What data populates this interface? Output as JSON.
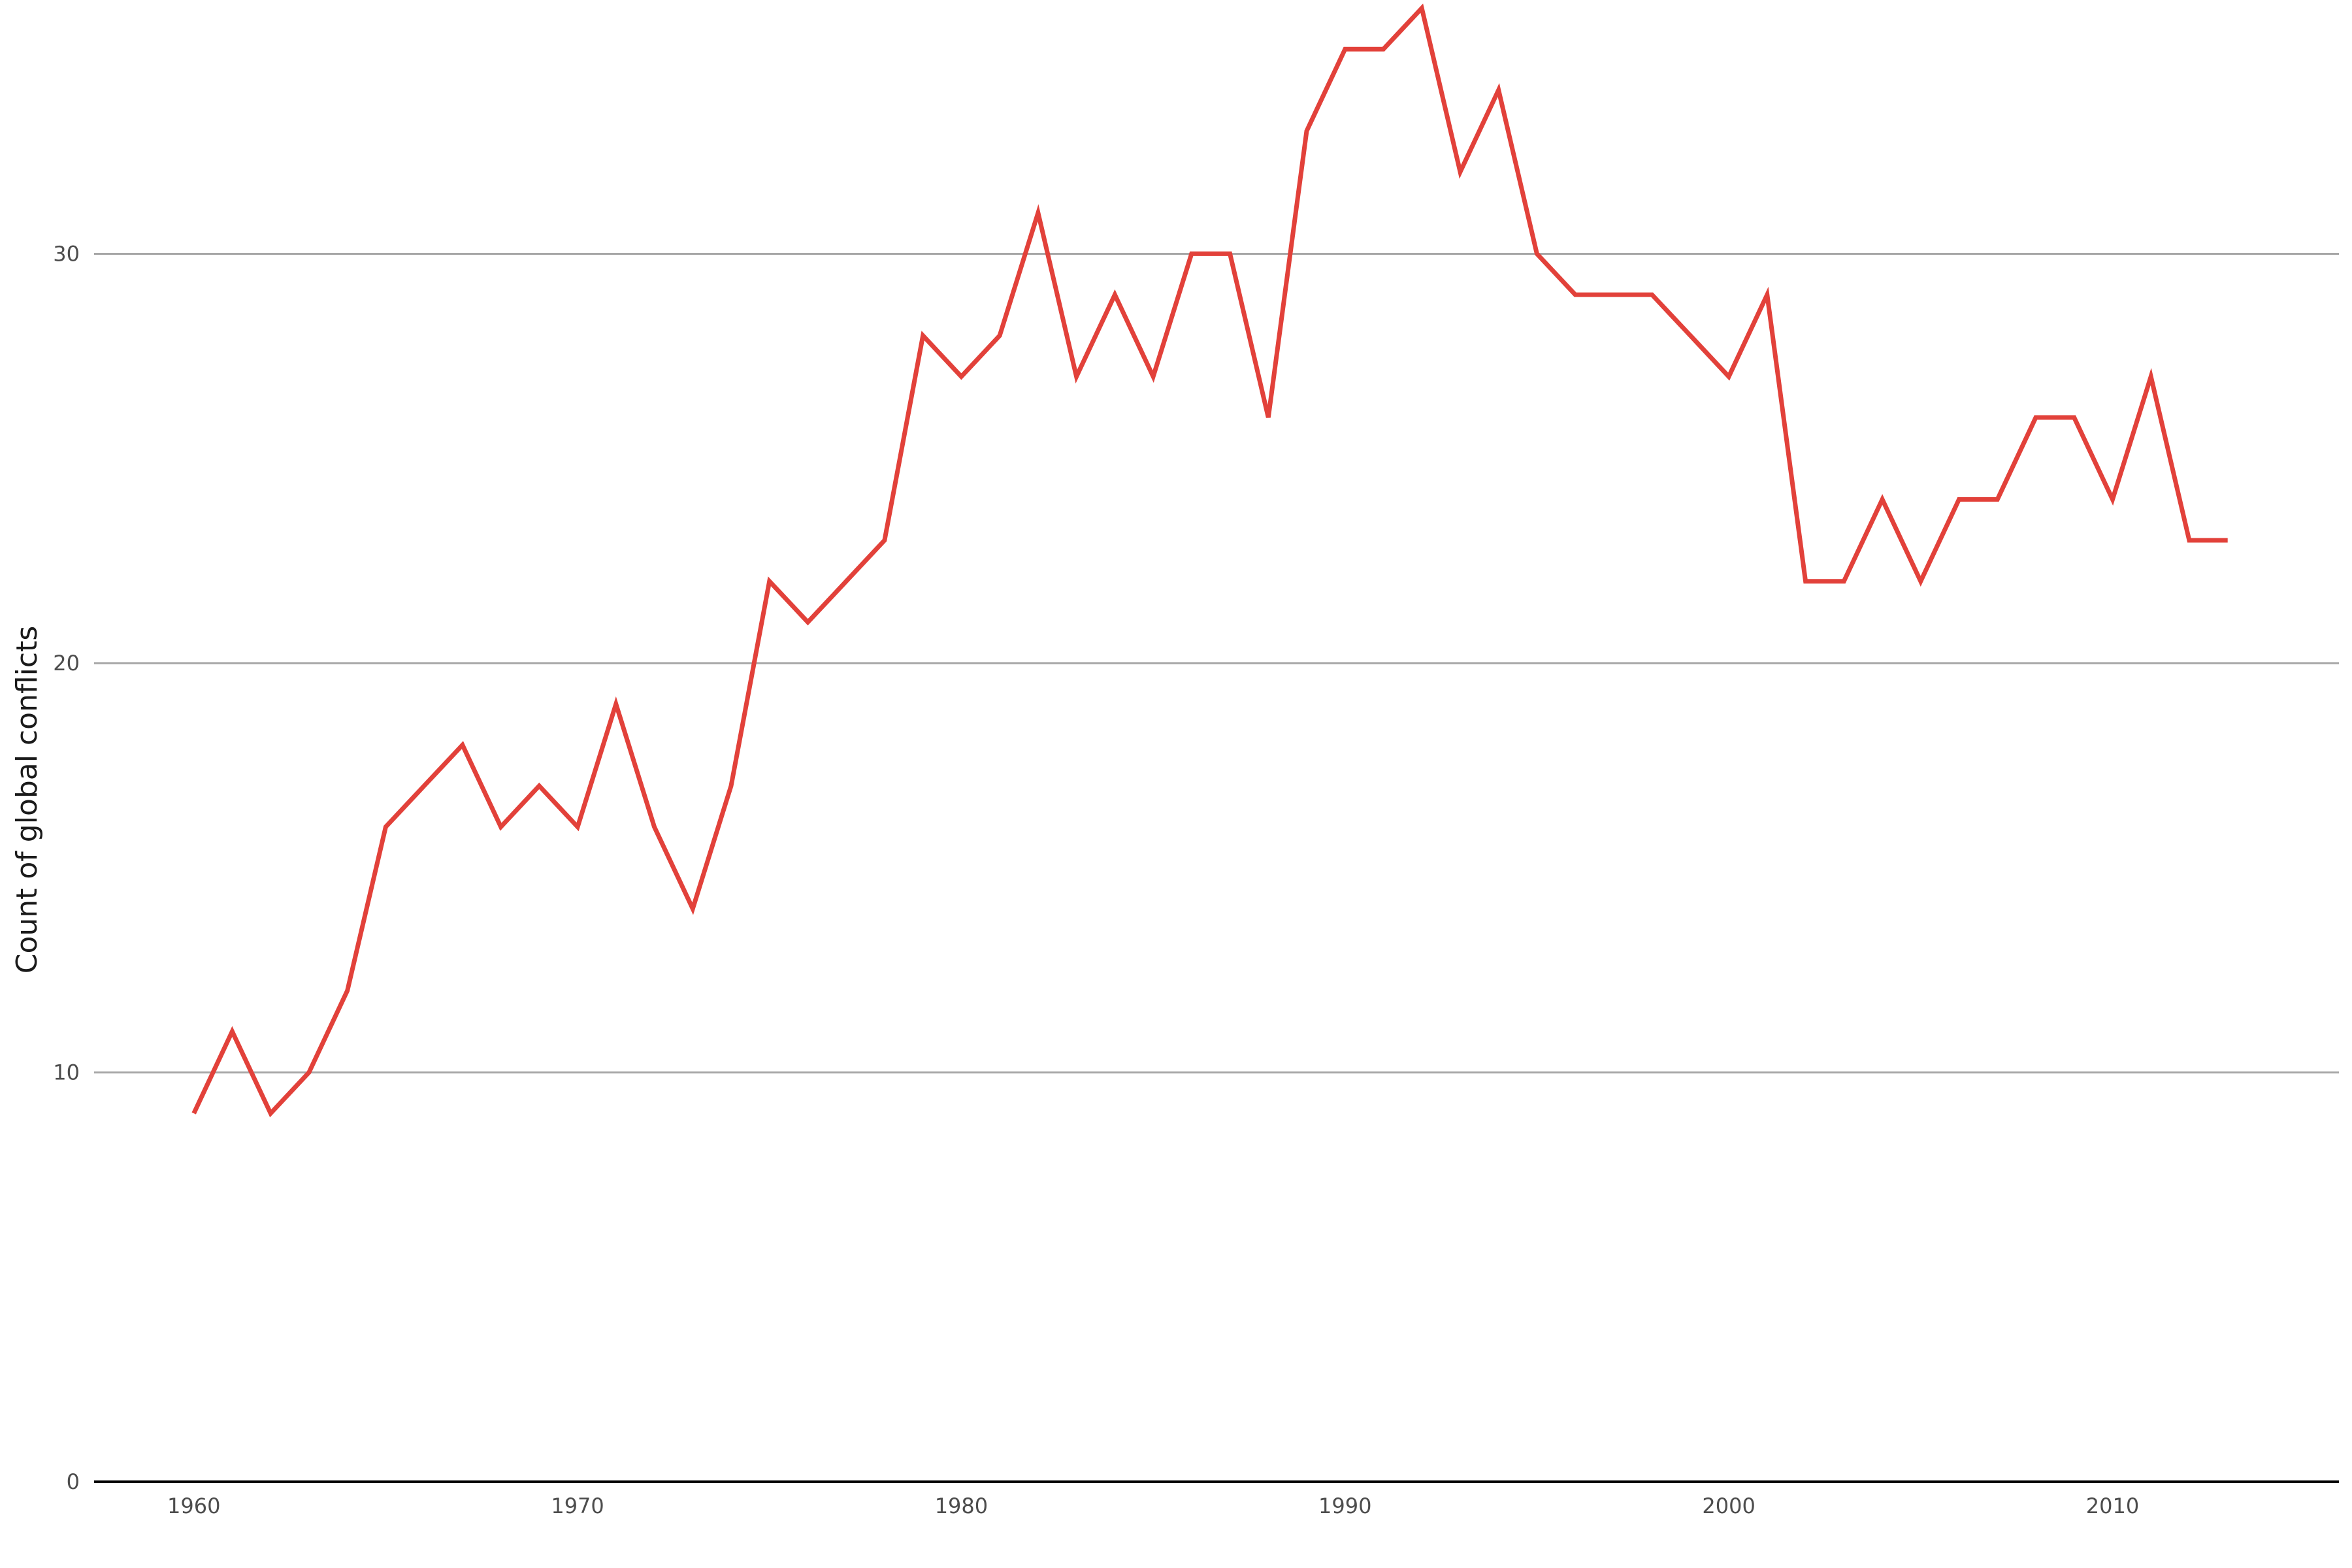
{
  "chart_data": {
    "type": "line",
    "title": "",
    "xlabel": "",
    "ylabel": "Count of global conflicts",
    "xlim": [
      1957.4,
      2015.9
    ],
    "ylim": [
      0,
      36.2
    ],
    "x_ticks": [
      1960,
      1970,
      1980,
      1990,
      2000,
      2010
    ],
    "y_ticks": [
      0,
      10,
      20,
      30
    ],
    "grid": "horizontal",
    "legend": "none",
    "series": [
      {
        "color": "#e2413a",
        "x": [
          1960,
          1961,
          1962,
          1963,
          1964,
          1965,
          1966,
          1967,
          1968,
          1969,
          1970,
          1971,
          1972,
          1973,
          1974,
          1975,
          1976,
          1977,
          1978,
          1979,
          1980,
          1981,
          1982,
          1983,
          1984,
          1985,
          1986,
          1987,
          1988,
          1989,
          1990,
          1991,
          1992,
          1993,
          1994,
          1995,
          1996,
          1997,
          1998,
          1999,
          2000,
          2001,
          2002,
          2003,
          2004,
          2005,
          2006,
          2007,
          2008,
          2009,
          2010,
          2011,
          2012,
          2013
        ],
        "values": [
          9,
          11,
          9,
          10,
          12,
          16,
          17,
          18,
          16,
          17,
          16,
          19,
          16,
          14,
          17,
          22,
          21,
          22,
          23,
          28,
          27,
          28,
          31,
          27,
          29,
          27,
          30,
          30,
          26,
          33,
          35,
          35,
          36,
          32,
          34,
          30,
          29,
          29,
          29,
          28,
          27,
          29,
          22,
          22,
          24,
          22,
          24,
          24,
          26,
          26,
          24,
          27,
          23,
          23
        ]
      }
    ]
  },
  "colors": {
    "line": "#e2413a",
    "grid": "#a6a6a6",
    "axis": "#000000"
  }
}
